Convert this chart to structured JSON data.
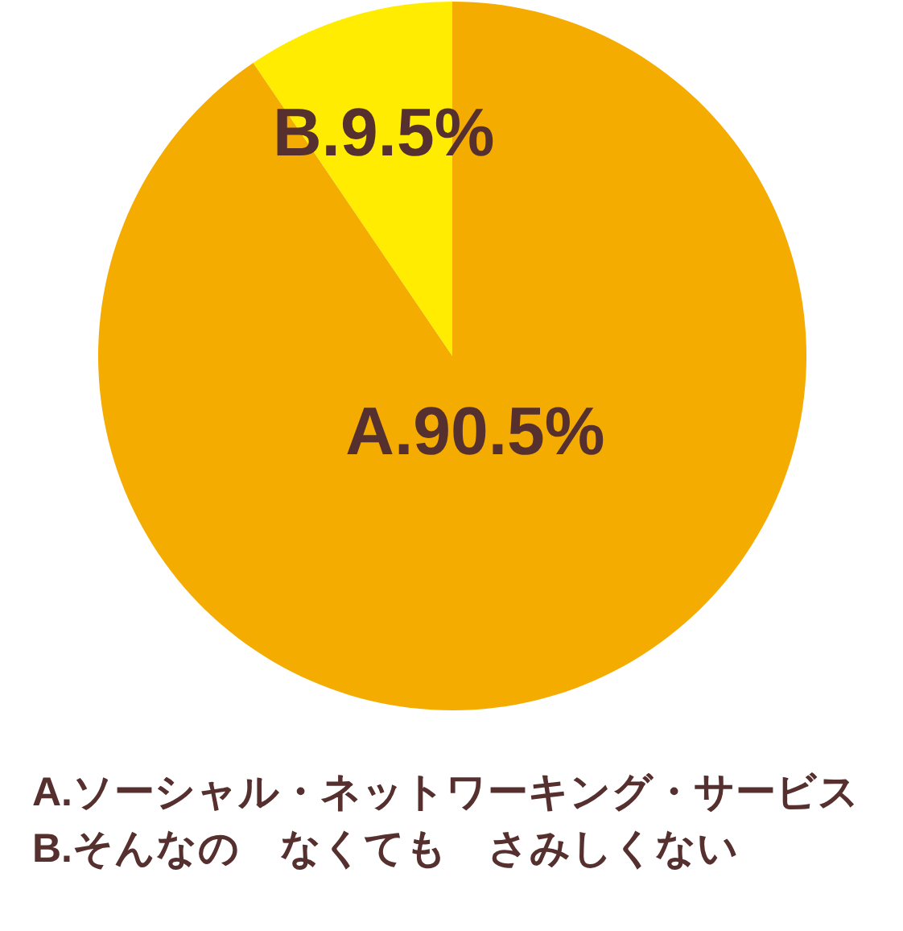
{
  "chart_data": {
    "type": "pie",
    "categories": [
      "A.",
      "B."
    ],
    "values": [
      90.5,
      9.5
    ],
    "colors": [
      "#f5ac00",
      "#ffec00"
    ],
    "value_labels": [
      "90.5%",
      "9.5%"
    ],
    "annotations": [
      "A.ソーシャル・ネットワーキング・サービス",
      "B.そんなの　なくても　さみしくない"
    ]
  }
}
